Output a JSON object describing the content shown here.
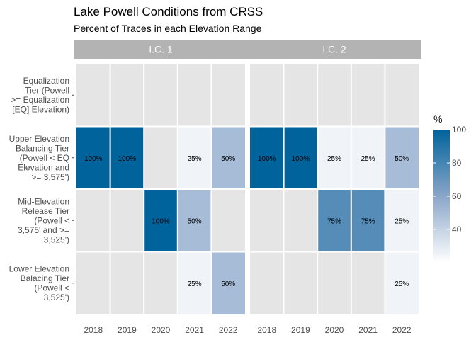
{
  "chart_data": {
    "type": "heatmap",
    "title": "Lake Powell Conditions from CRSS",
    "subtitle": "Percent of Traces in each Elevation Range",
    "xlabel": "",
    "ylabel": "",
    "legend_title": "%",
    "legend_ticks": [
      "40",
      "60",
      "80",
      "100"
    ],
    "legend_range": [
      20,
      100
    ],
    "legend_placement": "right",
    "colors": {
      "panel_bg": "#e5e5e5",
      "strip_bg": "#b3b3b3",
      "low": "#ffffff",
      "high": "#00639b"
    },
    "years": [
      "2018",
      "2019",
      "2020",
      "2021",
      "2022"
    ],
    "rows": [
      "Equalization\nTier (Powell\n>= Equalization\n[EQ] Elevation)",
      "Upper Elevation\nBalancing Tier\n(Powell < EQ\nElevation and\n>= 3,575')",
      "Mid-Elevation\nRelease Tier\n(Powell <\n3,575' and >=\n3,525')",
      "Lower Elevation\nBalacing Tier\n(Powell <\n3,525')"
    ],
    "panels": [
      {
        "name": "I.C. 1",
        "values": [
          [
            null,
            null,
            null,
            null,
            null
          ],
          [
            100,
            100,
            null,
            25,
            50
          ],
          [
            null,
            null,
            100,
            50,
            null
          ],
          [
            null,
            null,
            null,
            25,
            50
          ]
        ]
      },
      {
        "name": "I.C. 2",
        "values": [
          [
            null,
            null,
            null,
            null,
            null
          ],
          [
            100,
            100,
            25,
            25,
            50
          ],
          [
            null,
            null,
            75,
            75,
            25
          ],
          [
            null,
            null,
            null,
            null,
            25
          ]
        ]
      }
    ]
  }
}
